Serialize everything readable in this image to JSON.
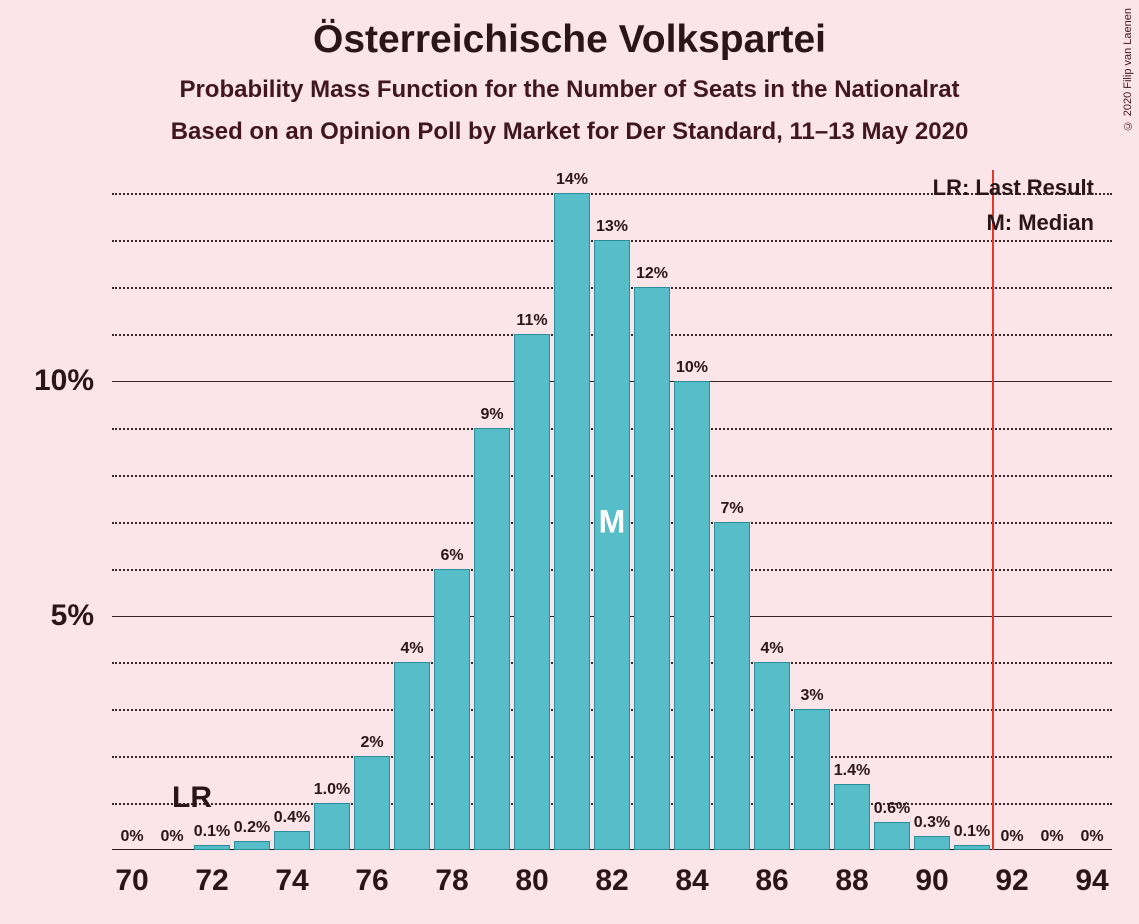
{
  "title": "Österreichische Volkspartei",
  "subtitle1": "Probability Mass Function for the Number of Seats in the Nationalrat",
  "subtitle2": "Based on an Opinion Poll by Market for Der Standard, 11–13 May 2020",
  "copyright": "© 2020 Filip van Laenen",
  "legend_lr": "LR: Last Result",
  "legend_m": "M: Median",
  "chart": {
    "type": "bar",
    "background_color": "#fce5e8",
    "bar_color": "#57bdc8",
    "bar_border_color": "#2a8e9a",
    "grid_color_dotted": "#3a2528",
    "lr_line_color": "#e8362a",
    "title_color": "#2a1518",
    "subtitle_color": "#401620",
    "median_label_color": "#ffffff",
    "title_fontsize": 39,
    "subtitle_fontsize": 24,
    "ylabel_fontsize": 30,
    "xlabel_fontsize": 30,
    "barlabel_fontsize": 16,
    "legend_fontsize": 22,
    "x_min": 69.5,
    "x_max": 94.5,
    "x_ticks": [
      70,
      72,
      74,
      76,
      78,
      80,
      82,
      84,
      86,
      88,
      90,
      92,
      94
    ],
    "y_min": 0,
    "y_max": 14.5,
    "y_major_ticks": [
      5,
      10
    ],
    "y_major_labels": [
      "5%",
      "10%"
    ],
    "y_minor_step": 1,
    "bar_width": 0.92,
    "bars": [
      {
        "x": 70,
        "value": 0,
        "label": "0%"
      },
      {
        "x": 71,
        "value": 0,
        "label": "0%"
      },
      {
        "x": 72,
        "value": 0.1,
        "label": "0.1%"
      },
      {
        "x": 73,
        "value": 0.2,
        "label": "0.2%"
      },
      {
        "x": 74,
        "value": 0.4,
        "label": "0.4%"
      },
      {
        "x": 75,
        "value": 1.0,
        "label": "1.0%"
      },
      {
        "x": 76,
        "value": 2,
        "label": "2%"
      },
      {
        "x": 77,
        "value": 4,
        "label": "4%"
      },
      {
        "x": 78,
        "value": 6,
        "label": "6%"
      },
      {
        "x": 79,
        "value": 9,
        "label": "9%"
      },
      {
        "x": 80,
        "value": 11,
        "label": "11%"
      },
      {
        "x": 81,
        "value": 14,
        "label": "14%"
      },
      {
        "x": 82,
        "value": 13,
        "label": "13%"
      },
      {
        "x": 83,
        "value": 12,
        "label": "12%"
      },
      {
        "x": 84,
        "value": 10,
        "label": "10%"
      },
      {
        "x": 85,
        "value": 7,
        "label": "7%"
      },
      {
        "x": 86,
        "value": 4,
        "label": "4%"
      },
      {
        "x": 87,
        "value": 3,
        "label": "3%"
      },
      {
        "x": 88,
        "value": 1.4,
        "label": "1.4%"
      },
      {
        "x": 89,
        "value": 0.6,
        "label": "0.6%"
      },
      {
        "x": 90,
        "value": 0.3,
        "label": "0.3%"
      },
      {
        "x": 91,
        "value": 0.1,
        "label": "0.1%"
      },
      {
        "x": 92,
        "value": 0,
        "label": "0%"
      },
      {
        "x": 93,
        "value": 0,
        "label": "0%"
      },
      {
        "x": 94,
        "value": 0,
        "label": "0%"
      }
    ],
    "median_x": 82,
    "median_label": "M",
    "lr_x": 71,
    "lr_label": "LR",
    "lr_line_x": 91.5
  }
}
